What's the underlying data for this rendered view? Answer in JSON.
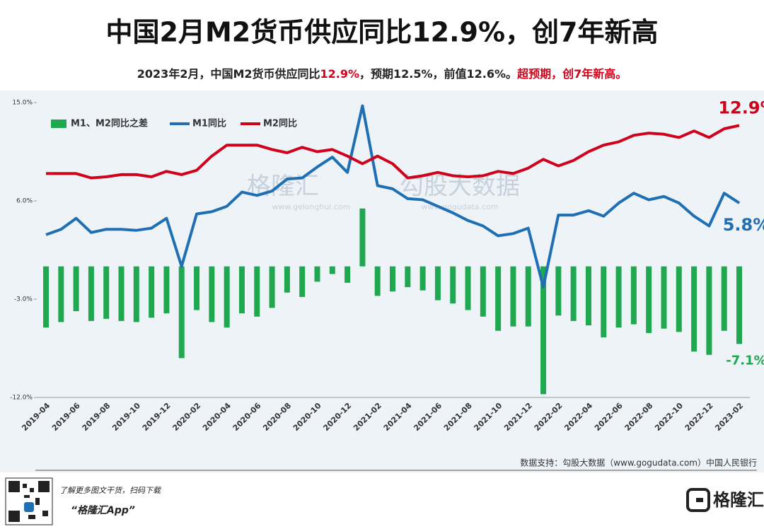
{
  "chart_data": {
    "type": "combo",
    "title": "中国2月M2货币供应同比12.9%，创7年新高",
    "subtitle_parts": [
      {
        "text": "2023年2月，中国M2货币供应同比",
        "color": "#222222"
      },
      {
        "text": "12.9%",
        "color": "#d0021b"
      },
      {
        "text": "，预期12.5%，前值12.6%。",
        "color": "#222222"
      },
      {
        "text": "超预期，创7年新高。",
        "color": "#d0021b"
      }
    ],
    "categories": [
      "2019-04",
      null,
      "2019-06",
      null,
      "2019-08",
      null,
      "2019-10",
      null,
      "2019-12",
      null,
      "2020-02",
      null,
      "2020-04",
      null,
      "2020-06",
      null,
      "2020-08",
      null,
      "2020-10",
      null,
      "2020-12",
      null,
      "2021-02",
      null,
      "2021-04",
      null,
      "2021-06",
      null,
      "2021-08",
      null,
      "2021-10",
      null,
      "2021-12",
      null,
      "2022-02",
      null,
      "2022-04",
      null,
      "2022-06",
      null,
      "2022-08",
      null,
      "2022-10",
      null,
      "2022-12",
      null,
      "2023-02"
    ],
    "series": [
      {
        "name": "M1、M2同比之差",
        "type": "bar",
        "color": "#1fa84f",
        "values": [
          -5.6,
          -5.1,
          -4.1,
          -5.0,
          -4.8,
          -5.0,
          -5.1,
          -4.7,
          -4.3,
          -8.4,
          -4.0,
          -5.1,
          -5.6,
          -4.3,
          -4.6,
          -3.8,
          -2.4,
          -2.8,
          -1.4,
          -0.7,
          -1.5,
          5.3,
          -2.7,
          -2.3,
          -1.9,
          -2.2,
          -3.1,
          -3.4,
          -4.0,
          -4.6,
          -5.9,
          -5.5,
          -5.5,
          -11.7,
          -4.5,
          -5.0,
          -5.4,
          -6.5,
          -5.6,
          -5.3,
          -6.1,
          -5.7,
          -6.0,
          -7.8,
          -8.1,
          -5.9,
          -7.1
        ],
        "value_labels": [
          null,
          null,
          null,
          null,
          null,
          null,
          null,
          null,
          null,
          null,
          null,
          null,
          null,
          null,
          null,
          null,
          null,
          null,
          null,
          null,
          null,
          null,
          null,
          null,
          null,
          null,
          null,
          null,
          null,
          null,
          null,
          null,
          null,
          null,
          null,
          null,
          null,
          null,
          null,
          null,
          null,
          null,
          null,
          null,
          null,
          null,
          "-7.1%"
        ]
      },
      {
        "name": "M1同比",
        "type": "line",
        "color": "#1f6fb5",
        "values": [
          2.9,
          3.4,
          4.4,
          3.1,
          3.4,
          3.4,
          3.3,
          3.5,
          4.4,
          0.0,
          4.8,
          5.0,
          5.5,
          6.8,
          6.5,
          6.9,
          8.0,
          8.1,
          9.1,
          10.0,
          8.6,
          14.7,
          7.4,
          7.1,
          6.2,
          6.1,
          5.5,
          4.9,
          4.2,
          3.7,
          2.8,
          3.0,
          3.5,
          -1.9,
          4.7,
          4.7,
          5.1,
          4.6,
          5.8,
          6.7,
          6.1,
          6.4,
          5.8,
          4.6,
          3.7,
          6.7,
          5.8
        ],
        "value_labels": [
          null,
          null,
          null,
          null,
          null,
          null,
          null,
          null,
          null,
          null,
          null,
          null,
          null,
          null,
          null,
          null,
          null,
          null,
          null,
          null,
          null,
          null,
          null,
          null,
          null,
          null,
          null,
          null,
          null,
          null,
          null,
          null,
          null,
          null,
          null,
          null,
          null,
          null,
          null,
          null,
          null,
          null,
          null,
          null,
          null,
          null,
          "5.8%"
        ]
      },
      {
        "name": "M2同比",
        "type": "line",
        "color": "#d0021b",
        "values": [
          8.5,
          8.5,
          8.5,
          8.1,
          8.2,
          8.4,
          8.4,
          8.2,
          8.7,
          8.4,
          8.8,
          10.1,
          11.1,
          11.1,
          11.1,
          10.7,
          10.4,
          10.9,
          10.5,
          10.7,
          10.1,
          9.4,
          10.1,
          9.4,
          8.1,
          8.3,
          8.6,
          8.3,
          8.2,
          8.3,
          8.7,
          8.5,
          9.0,
          9.8,
          9.2,
          9.7,
          10.5,
          11.1,
          11.4,
          12.0,
          12.2,
          12.1,
          11.8,
          12.4,
          11.8,
          12.6,
          12.9
        ],
        "value_labels": [
          null,
          null,
          null,
          null,
          null,
          null,
          null,
          null,
          null,
          null,
          null,
          null,
          null,
          null,
          null,
          null,
          null,
          null,
          null,
          null,
          null,
          null,
          null,
          null,
          null,
          null,
          null,
          null,
          null,
          null,
          null,
          null,
          null,
          null,
          null,
          null,
          null,
          null,
          null,
          null,
          null,
          null,
          null,
          null,
          null,
          null,
          "12.9%"
        ]
      }
    ],
    "ylim": [
      -12,
      15
    ],
    "yticks": [
      {
        "value": -12,
        "label": "-12.0%"
      },
      {
        "value": -3,
        "label": "-3.0%"
      },
      {
        "value": 6,
        "label": "6.0%"
      },
      {
        "value": 15,
        "label": "15.0%"
      }
    ],
    "grid": false,
    "legend": "top-left",
    "source": "数据支持：勾股大数据（www.gogudata.com）中国人民银行",
    "watermarks": [
      "格隆汇",
      "www.gelonghui.com",
      "勾股大数据",
      "www.gogudata.com"
    ]
  },
  "footer": {
    "promo": "了解更多图文干货，扫码下载",
    "app": "“格隆汇App”",
    "logo": "格隆汇"
  }
}
